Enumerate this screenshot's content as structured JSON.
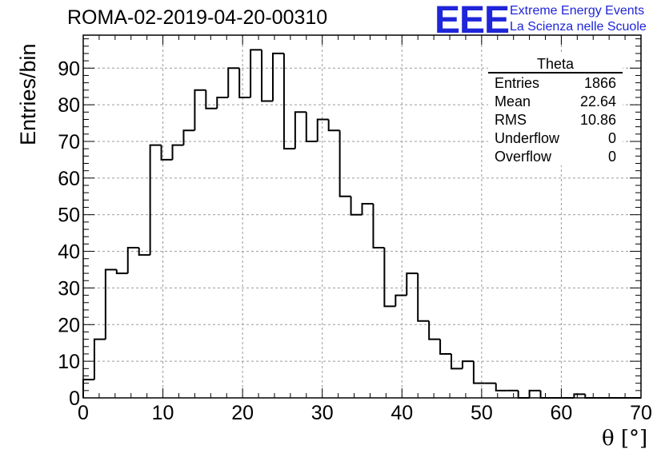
{
  "header": {
    "title": "ROMA-02-2019-04-20-00310",
    "logo_mark": "EEE",
    "logo_line1": "Extreme Energy Events",
    "logo_line2": "La Scienza nelle Scuole"
  },
  "stats_box": {
    "name": "Theta",
    "rows": [
      {
        "label": "Entries",
        "value": "1866"
      },
      {
        "label": "Mean",
        "value": "22.64"
      },
      {
        "label": "RMS",
        "value": "10.86"
      },
      {
        "label": "Underflow",
        "value": "0"
      },
      {
        "label": "Overflow",
        "value": "0"
      }
    ]
  },
  "chart_data": {
    "type": "histogram",
    "title": "ROMA-02-2019-04-20-00310",
    "xlabel": "θ [°]",
    "ylabel": "Entries/bin",
    "xlim": [
      0,
      70
    ],
    "ylim": [
      0,
      99
    ],
    "bin_width": 1.4,
    "bin_start": 0,
    "xticks": [
      0,
      10,
      20,
      30,
      40,
      50,
      60,
      70
    ],
    "yticks": [
      0,
      10,
      20,
      30,
      40,
      50,
      60,
      70,
      80,
      90
    ],
    "grid": true,
    "line_color": "#000000",
    "values": [
      5,
      16,
      35,
      34,
      41,
      39,
      69,
      65,
      69,
      73,
      84,
      79,
      82,
      90,
      82,
      95,
      81,
      94,
      68,
      78,
      70,
      76,
      73,
      55,
      50,
      53,
      41,
      25,
      28,
      34,
      21,
      16,
      12,
      8,
      10,
      4,
      4,
      2,
      2,
      0,
      2,
      0,
      0,
      0,
      1,
      0,
      0,
      0,
      0,
      0
    ]
  }
}
